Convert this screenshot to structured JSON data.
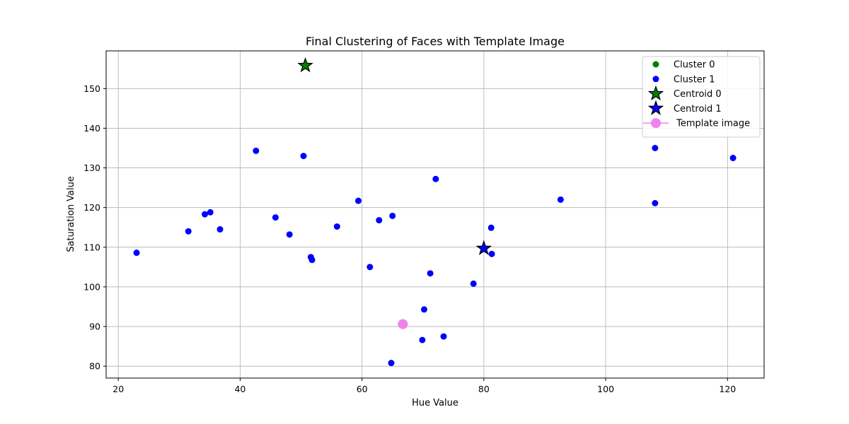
{
  "chart_data": {
    "type": "scatter",
    "title": "Final Clustering of Faces with Template Image",
    "xlabel": "Hue Value",
    "ylabel": "Saturation Value",
    "xlim": [
      18,
      126
    ],
    "ylim": [
      77,
      159.5
    ],
    "xticks": [
      20,
      40,
      60,
      80,
      100,
      120
    ],
    "yticks": [
      80,
      90,
      100,
      110,
      120,
      130,
      140,
      150
    ],
    "grid": true,
    "legend_position": "top-right",
    "series": [
      {
        "name": "Cluster 0",
        "marker": "circle",
        "color": "#008000",
        "points": []
      },
      {
        "name": "Cluster 1",
        "marker": "circle",
        "color": "#0000ff",
        "points": [
          [
            23,
            108.6
          ],
          [
            31.5,
            114
          ],
          [
            34.2,
            118.3
          ],
          [
            35.1,
            118.8
          ],
          [
            36.7,
            114.5
          ],
          [
            42.6,
            134.3
          ],
          [
            45.8,
            117.5
          ],
          [
            48.1,
            113.2
          ],
          [
            50.4,
            133
          ],
          [
            51.6,
            107.5
          ],
          [
            51.8,
            106.8
          ],
          [
            55.9,
            115.2
          ],
          [
            59.4,
            121.7
          ],
          [
            61.3,
            105
          ],
          [
            62.8,
            116.8
          ],
          [
            65,
            117.9
          ],
          [
            64.8,
            80.8
          ],
          [
            69.9,
            86.6
          ],
          [
            70.2,
            94.3
          ],
          [
            71.2,
            103.4
          ],
          [
            72.1,
            127.2
          ],
          [
            73.4,
            87.5
          ],
          [
            78.3,
            100.8
          ],
          [
            81.2,
            114.9
          ],
          [
            81.3,
            108.3
          ],
          [
            92.6,
            122
          ],
          [
            108.1,
            135
          ],
          [
            108.1,
            121.1
          ],
          [
            120.9,
            132.5
          ]
        ]
      },
      {
        "name": "Centroid 0",
        "marker": "star",
        "color": "#008000",
        "points": [
          [
            50.7,
            155.8
          ]
        ]
      },
      {
        "name": "Centroid 1",
        "marker": "star",
        "color": "#0000ff",
        "points": [
          [
            80,
            109.7
          ]
        ]
      },
      {
        "name": " Template image",
        "marker": "large-circle",
        "color": "#ee82ee",
        "points": [
          [
            66.7,
            90.6
          ]
        ]
      }
    ]
  }
}
